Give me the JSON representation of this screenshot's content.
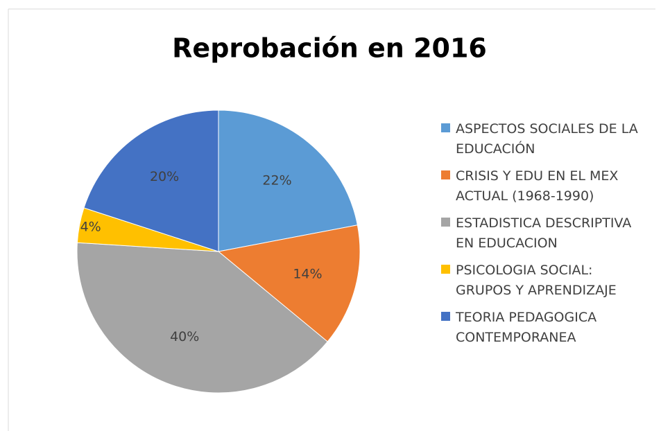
{
  "chart_data": {
    "type": "pie",
    "title": "Reprobación en 2016",
    "categories": [
      "ASPECTOS SOCIALES DE LA EDUCACIÓN",
      "CRISIS Y EDU EN EL MEX ACTUAL (1968-1990)",
      "ESTADISTICA DESCRIPTIVA EN EDUCACION",
      "PSICOLOGIA SOCIAL: GRUPOS Y APRENDIZAJE",
      "TEORIA PEDAGOGICA CONTEMPORANEA"
    ],
    "values": [
      22,
      14,
      40,
      4,
      20
    ],
    "value_labels": [
      "22%",
      "14%",
      "40%",
      "4%",
      "20%"
    ],
    "colors": [
      "#5b9bd5",
      "#ed7d31",
      "#a5a5a5",
      "#ffc000",
      "#4472c4"
    ],
    "legend": "right"
  }
}
